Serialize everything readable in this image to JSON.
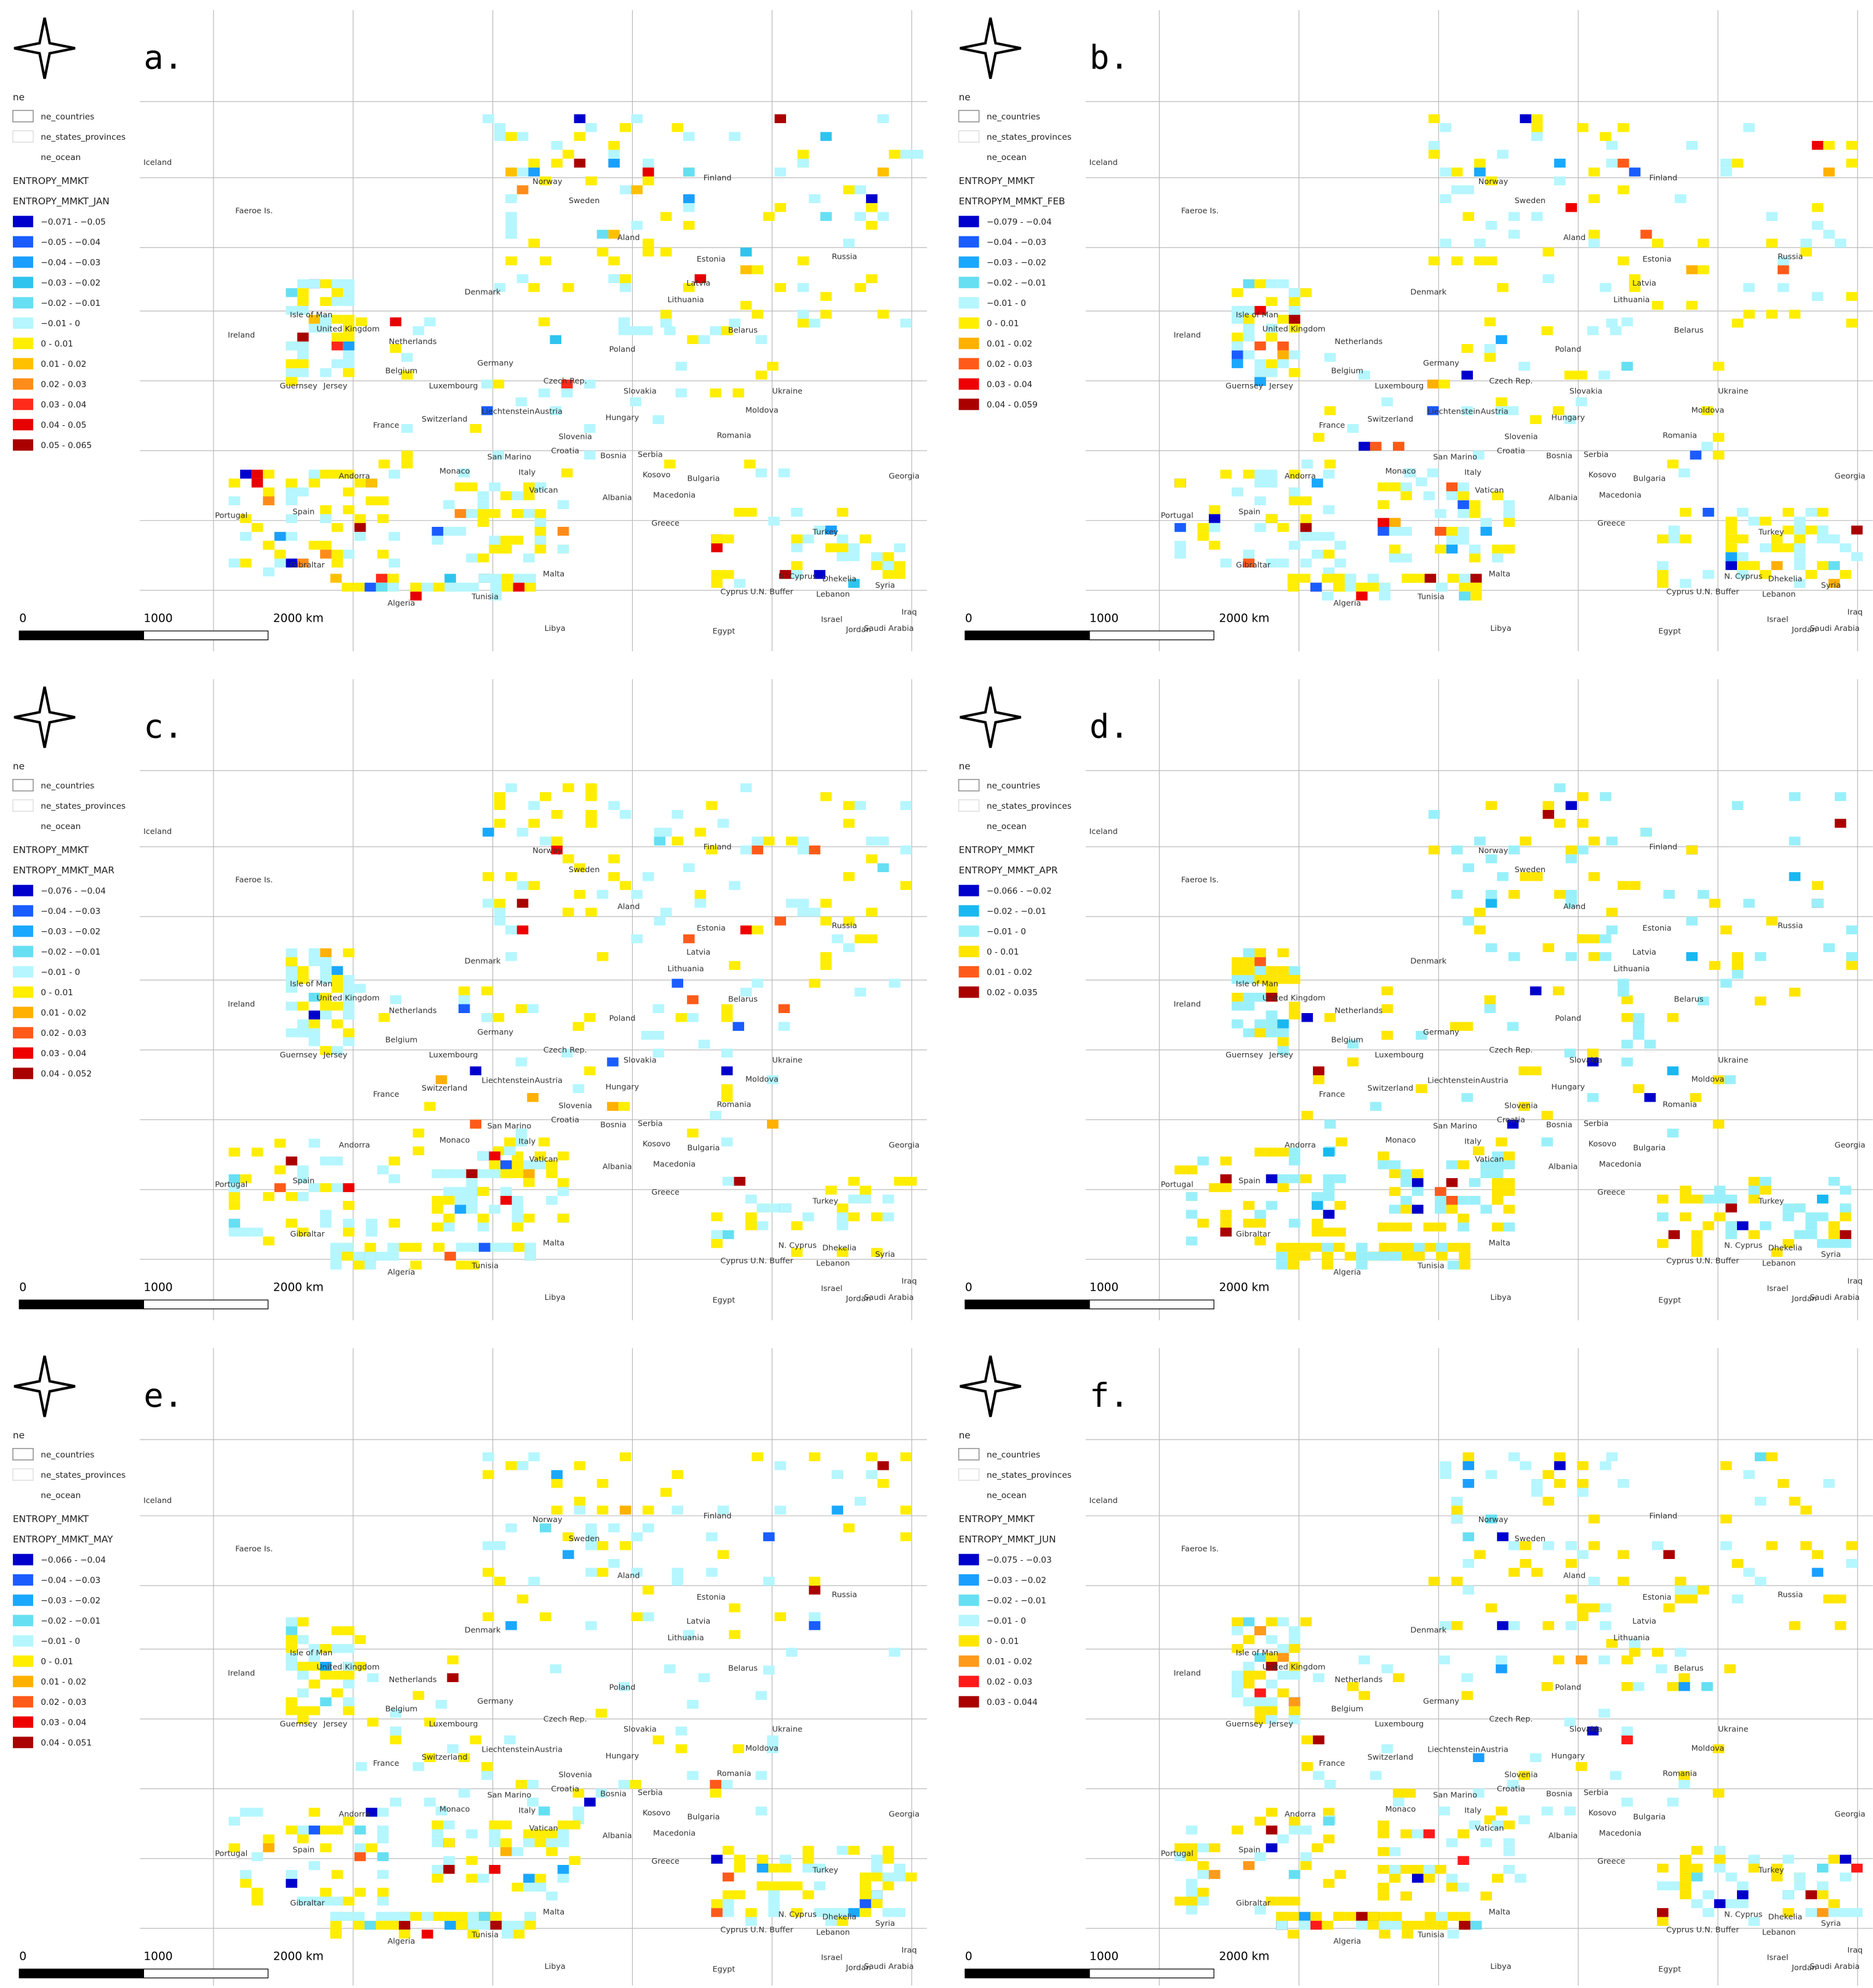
{
  "legend_header": "ne",
  "layers": [
    "ne_countries",
    "ne_states_provinces",
    "ne_ocean"
  ],
  "group": "ENTROPY_MMKT",
  "scale_labels": [
    "0",
    "1000",
    "2000 km"
  ],
  "places": [
    "Iceland",
    "Faeroe Is.",
    "Norway",
    "Sweden",
    "Finland",
    "Aland",
    "Estonia",
    "Russia",
    "Latvia",
    "Lithuania",
    "Denmark",
    "Isle of Man",
    "United Kingdom",
    "Ireland",
    "Netherlands",
    "Belarus",
    "Poland",
    "Germany",
    "Belgium",
    "Guernsey",
    "Jersey",
    "Luxembourg",
    "Czech Rep.",
    "Slovakia",
    "Ukraine",
    "Switzerland",
    "Liechtenstein",
    "Austria",
    "Hungary",
    "Moldova",
    "France",
    "Slovenia",
    "Romania",
    "Croatia",
    "Bosnia",
    "Serbia",
    "San Marino",
    "Andorra",
    "Monaco",
    "Italy",
    "Kosovo",
    "Bulgaria",
    "Georgia",
    "Vatican",
    "Macedonia",
    "Albania",
    "Portugal",
    "Spain",
    "Greece",
    "Turkey",
    "Gibraltar",
    "Malta",
    "N. Cyprus",
    "Dhekelia",
    "Syria",
    "Cyprus U.N. Buffer",
    "Lebanon",
    "Algeria",
    "Tunisia",
    "Libya",
    "Egypt",
    "Israel",
    "Jordan",
    "Iraq",
    "Saudi Arabia"
  ],
  "panels": [
    {
      "letter": "a.",
      "legend_title": "ENTROPY_MMKT_JAN",
      "classes": [
        {
          "label": "−0.071 - −0.05",
          "color": "#0000cc"
        },
        {
          "label": "−0.05 - −0.04",
          "color": "#1a5cff"
        },
        {
          "label": "−0.04 - −0.03",
          "color": "#1a9fff"
        },
        {
          "label": "−0.03 - −0.02",
          "color": "#2ec4ee"
        },
        {
          "label": "−0.02 - −0.01",
          "color": "#66dff2"
        },
        {
          "label": "−0.01 - 0",
          "color": "#b5f6ff"
        },
        {
          "label": "0 - 0.01",
          "color": "#ffee00"
        },
        {
          "label": "0.01 - 0.02",
          "color": "#ffc000"
        },
        {
          "label": "0.02 - 0.03",
          "color": "#ff8c1a"
        },
        {
          "label": "0.03 - 0.04",
          "color": "#ff2a1a"
        },
        {
          "label": "0.04 - 0.05",
          "color": "#e60000"
        },
        {
          "label": "0.05 - 0.065",
          "color": "#aa0000"
        }
      ]
    },
    {
      "letter": "b.",
      "legend_title": "ENTROPYM_MMKT_FEB",
      "classes": [
        {
          "label": "−0.079 - −0.04",
          "color": "#0000cc"
        },
        {
          "label": "−0.04 - −0.03",
          "color": "#1a5cff"
        },
        {
          "label": "−0.03 - −0.02",
          "color": "#1aa8ff"
        },
        {
          "label": "−0.02 - −0.01",
          "color": "#66dff2"
        },
        {
          "label": "−0.01 - 0",
          "color": "#b5f6ff"
        },
        {
          "label": "0 - 0.01",
          "color": "#ffee00"
        },
        {
          "label": "0.01 - 0.02",
          "color": "#ffb000"
        },
        {
          "label": "0.02 - 0.03",
          "color": "#ff5a1a"
        },
        {
          "label": "0.03 - 0.04",
          "color": "#ee0000"
        },
        {
          "label": "0.04 - 0.059",
          "color": "#aa0000"
        }
      ]
    },
    {
      "letter": "c.",
      "legend_title": "ENTROPY_MMKT_MAR",
      "classes": [
        {
          "label": "−0.076 - −0.04",
          "color": "#0000cc"
        },
        {
          "label": "−0.04 - −0.03",
          "color": "#1a5cff"
        },
        {
          "label": "−0.03 - −0.02",
          "color": "#1aa8ff"
        },
        {
          "label": "−0.02 - −0.01",
          "color": "#66dff2"
        },
        {
          "label": "−0.01 - 0",
          "color": "#b5f6ff"
        },
        {
          "label": "0 - 0.01",
          "color": "#ffee00"
        },
        {
          "label": "0.01 - 0.02",
          "color": "#ffb000"
        },
        {
          "label": "0.02 - 0.03",
          "color": "#ff5a1a"
        },
        {
          "label": "0.03 - 0.04",
          "color": "#ee0000"
        },
        {
          "label": "0.04 - 0.052",
          "color": "#aa0000"
        }
      ]
    },
    {
      "letter": "d.",
      "legend_title": "ENTROPY_MMKT_APR",
      "classes": [
        {
          "label": "−0.066 - −0.02",
          "color": "#0000cc"
        },
        {
          "label": "−0.02 - −0.01",
          "color": "#1ab8f0"
        },
        {
          "label": "−0.01 - 0",
          "color": "#9af0fa"
        },
        {
          "label": "0 - 0.01",
          "color": "#ffe600"
        },
        {
          "label": "0.01 - 0.02",
          "color": "#ff5a1a"
        },
        {
          "label": "0.02 - 0.035",
          "color": "#aa0000"
        }
      ]
    },
    {
      "letter": "e.",
      "legend_title": "ENTROPY_MMKT_MAY",
      "classes": [
        {
          "label": "−0.066 - −0.04",
          "color": "#0000cc"
        },
        {
          "label": "−0.04 - −0.03",
          "color": "#1a5cff"
        },
        {
          "label": "−0.03 - −0.02",
          "color": "#1aa8ff"
        },
        {
          "label": "−0.02 - −0.01",
          "color": "#66dff2"
        },
        {
          "label": "−0.01 - 0",
          "color": "#b5f6ff"
        },
        {
          "label": "0 - 0.01",
          "color": "#ffee00"
        },
        {
          "label": "0.01 - 0.02",
          "color": "#ffb000"
        },
        {
          "label": "0.02 - 0.03",
          "color": "#ff5a1a"
        },
        {
          "label": "0.03 - 0.04",
          "color": "#ee0000"
        },
        {
          "label": "0.04 - 0.051",
          "color": "#aa0000"
        }
      ]
    },
    {
      "letter": "f.",
      "legend_title": "ENTROPY_MMKT_JUN",
      "classes": [
        {
          "label": "−0.075 - −0.03",
          "color": "#0000cc"
        },
        {
          "label": "−0.03 - −0.02",
          "color": "#1a9fff"
        },
        {
          "label": "−0.02 - −0.01",
          "color": "#66dff2"
        },
        {
          "label": "−0.01 - 0",
          "color": "#b5f6ff"
        },
        {
          "label": "0 - 0.01",
          "color": "#ffe600"
        },
        {
          "label": "0.01 - 0.02",
          "color": "#ff9a1a"
        },
        {
          "label": "0.02 - 0.03",
          "color": "#ff1a1a"
        },
        {
          "label": "0.03 - 0.044",
          "color": "#aa0000"
        }
      ]
    }
  ]
}
